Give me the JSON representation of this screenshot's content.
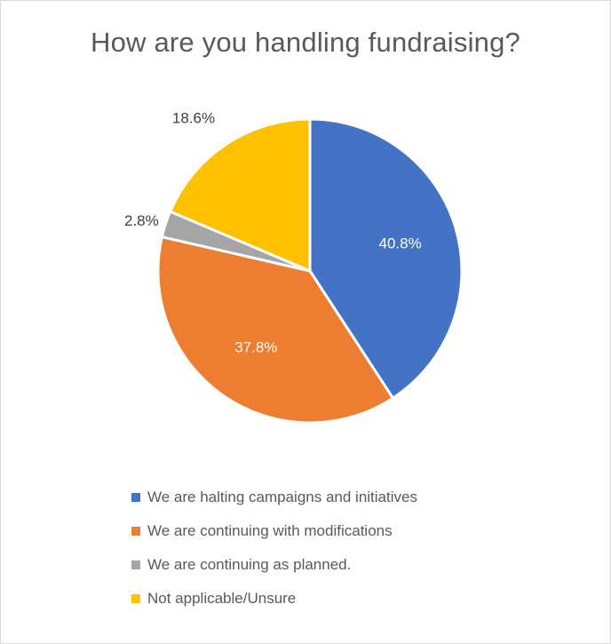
{
  "chart_data": {
    "type": "pie",
    "title": "How are you handling fundraising?",
    "categories": [
      "We are halting campaigns and initiatives",
      "We are continuing with modifications",
      "We are continuing as planned.",
      "Not applicable/Unsure"
    ],
    "values": [
      40.8,
      37.8,
      2.8,
      18.6
    ],
    "data_labels": [
      "40.8%",
      "37.8%",
      "2.8%",
      "18.6%"
    ],
    "colors": [
      "#4472C4",
      "#ED7D31",
      "#A5A5A5",
      "#FFC000"
    ],
    "legend_position": "bottom"
  }
}
